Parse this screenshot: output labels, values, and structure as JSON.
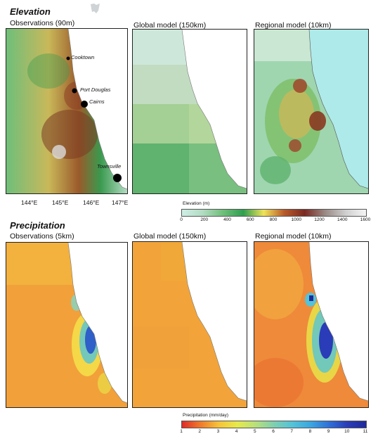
{
  "sections": {
    "elevation": {
      "title": "Elevation",
      "panels": [
        {
          "title": "Observations (90m)"
        },
        {
          "title": "Global model (150km)"
        },
        {
          "title": "Regional model (10km)"
        }
      ],
      "colorbar": {
        "title": "Elevation (m)",
        "ticks": [
          "0",
          "200",
          "400",
          "600",
          "800",
          "1000",
          "1200",
          "1400",
          "1600"
        ],
        "colors": [
          "#cfeee6",
          "#b3dcc3",
          "#6fbf7a",
          "#2f9e4f",
          "#f0e35a",
          "#b85a2a",
          "#7a2a22",
          "#9a8a85",
          "#cfcfcf",
          "#f5f5f5"
        ]
      }
    },
    "precipitation": {
      "title": "Precipitation",
      "panels": [
        {
          "title": "Observations (5km)"
        },
        {
          "title": "Global model (150km)"
        },
        {
          "title": "Regional model (10km)"
        }
      ],
      "colorbar": {
        "title": "Precipitation (mm/day)",
        "ticks": [
          "1",
          "2",
          "3",
          "4",
          "5",
          "6",
          "7",
          "8",
          "9",
          "10",
          "11"
        ],
        "colors": [
          "#e02a2a",
          "#f07a2a",
          "#f6c33a",
          "#e7e94a",
          "#b8e07a",
          "#7ecfb0",
          "#53c3d8",
          "#3aa6e0",
          "#2f6fd8",
          "#2a3cb8",
          "#1f2a9a"
        ]
      }
    }
  },
  "map": {
    "x_ticks": [
      "144°E",
      "145°E",
      "146°E",
      "147°E"
    ],
    "cities": [
      "Cooktown",
      "Port Douglas",
      "Cairns",
      "Townsville"
    ]
  }
}
